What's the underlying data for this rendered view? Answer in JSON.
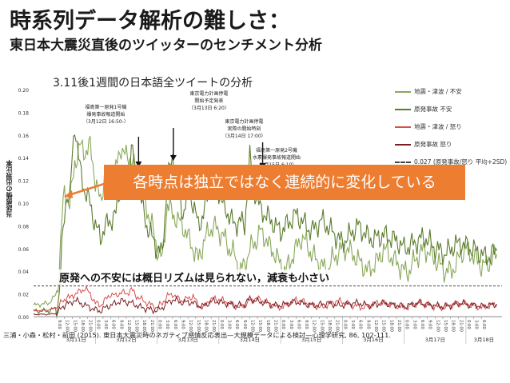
{
  "slide": {
    "title": "時系列データ解析の難しさ：",
    "subtitle": "東日本大震災直後のツイッターのセンチメント分析"
  },
  "callout": "各時点は独立ではなく連続的に変化している",
  "note": "原発への不安には概日リズムは見られない，減衰も小さい",
  "citation": "三浦・小森・松村・前田 (2015). 東日本大震災時のネガティブ感情反応表出—大規模データによる検討—心理学研究, 86, 102-111.",
  "annotations": [
    {
      "lines": [
        "福島第一原発1号機",
        "爆発事故報道開始",
        "（3月12日 16:50-）"
      ]
    },
    {
      "lines": [
        "東京電力計画停電",
        "開始予定発表",
        "（3月13日 6:20）"
      ]
    },
    {
      "lines": [
        "東京電力計画停電",
        "実際の開始時刻",
        "（3月14日 17:00）"
      ]
    },
    {
      "lines": [
        "福島第一原発2号機",
        "水素爆発事故報道開始",
        "（3月15日 6:10）"
      ]
    }
  ],
  "colors": {
    "quake_anxiety": "#8aa85a",
    "nuclear_anxiety": "#5b7c2c",
    "quake_anger": "#d6504f",
    "nuclear_anger": "#7a1f23",
    "callout": "#ed7d31",
    "threshold": "#444444"
  },
  "chart_data": {
    "type": "line",
    "title": "3.11後1週間の日本語全ツイートの分析",
    "ylabel": "当該感情の出現比率",
    "ylim": [
      0,
      0.2
    ],
    "yticks": [
      "0.00",
      "0.02",
      "0.04",
      "0.06",
      "0.08",
      "0.10",
      "0.12",
      "0.14",
      "0.16",
      "0.18",
      "0.20"
    ],
    "days": [
      "3月11日",
      "3月12日",
      "3月13日",
      "3月14日",
      "3月15日",
      "3月16日",
      "3月17日",
      "3月18日"
    ],
    "hour_ticks": [
      [
        "9:00",
        "12:00",
        "15:00",
        "18:00",
        "21:00"
      ],
      [
        "0:00",
        "3:00",
        "6:00",
        "9:00",
        "12:00",
        "15:00",
        "18:00",
        "21:00"
      ],
      [
        "0:00",
        "3:00",
        "6:00",
        "9:00",
        "12:00",
        "15:00",
        "18:00",
        "21:00"
      ],
      [
        "0:00",
        "3:00",
        "6:00",
        "9:00",
        "12:00",
        "15:00",
        "18:00",
        "21:00"
      ],
      [
        "0:00",
        "3:00",
        "6:00",
        "9:00",
        "12:00",
        "15:00",
        "18:00",
        "21:00"
      ],
      [
        "0:00",
        "3:00",
        "6:00",
        "9:00",
        "12:00",
        "15:00",
        "18:00",
        "21:00"
      ],
      [
        "0:00",
        "3:00",
        "6:00",
        "9:00",
        "12:00",
        "15:00",
        "18:00",
        "21:00"
      ],
      [
        "0:00",
        "3:00",
        "6:00"
      ]
    ],
    "x_unit": "hours since 3月11日 0:00",
    "x": [
      0,
      6,
      9,
      10,
      11,
      12,
      13,
      14,
      15,
      16,
      18,
      20,
      22,
      24,
      26,
      28,
      30,
      32,
      34,
      36,
      38,
      40,
      42,
      44,
      46,
      48,
      50,
      52,
      54,
      56,
      58,
      60,
      62,
      64,
      66,
      68,
      70,
      72,
      74,
      76,
      78,
      80,
      82,
      84,
      86,
      88,
      90,
      92,
      94,
      96,
      98,
      100,
      102,
      104,
      106,
      108,
      110,
      112,
      114,
      116,
      118,
      120,
      122,
      124,
      126,
      128,
      130,
      132,
      134,
      136,
      138,
      140,
      142,
      144,
      146,
      148,
      150,
      152,
      154,
      156,
      158,
      160,
      162,
      164,
      166,
      168,
      170,
      172,
      174,
      176,
      178,
      180
    ],
    "series": [
      {
        "name": "地震・津波 / 不安",
        "color_key": "quake_anxiety",
        "values": [
          0.01,
          0.012,
          0.02,
          0.045,
          0.085,
          0.11,
          0.105,
          0.1,
          0.115,
          0.135,
          0.15,
          0.145,
          0.15,
          0.12,
          0.1,
          0.13,
          0.115,
          0.13,
          0.15,
          0.14,
          0.14,
          0.125,
          0.115,
          0.095,
          0.08,
          0.06,
          0.05,
          0.1,
          0.09,
          0.085,
          0.08,
          0.07,
          0.06,
          0.05,
          0.065,
          0.075,
          0.08,
          0.075,
          0.07,
          0.06,
          0.055,
          0.04,
          0.045,
          0.06,
          0.065,
          0.075,
          0.07,
          0.06,
          0.055,
          0.045,
          0.04,
          0.05,
          0.06,
          0.07,
          0.065,
          0.055,
          0.05,
          0.045,
          0.04,
          0.05,
          0.055,
          0.06,
          0.06,
          0.055,
          0.05,
          0.045,
          0.04,
          0.045,
          0.05,
          0.06,
          0.055,
          0.05,
          0.045,
          0.04,
          0.04,
          0.05,
          0.055,
          0.06,
          0.055,
          0.05,
          0.045,
          0.04,
          0.04,
          0.045,
          0.055,
          0.06,
          0.055,
          0.05,
          0.045,
          0.045,
          0.05,
          0.055
        ]
      },
      {
        "name": "原発事故 不安",
        "color_key": "nuclear_anxiety",
        "values": [
          0.005,
          0.005,
          0.008,
          0.02,
          0.06,
          0.09,
          0.11,
          0.1,
          0.14,
          0.17,
          0.13,
          0.11,
          0.1,
          0.08,
          0.07,
          0.08,
          0.085,
          0.09,
          0.12,
          0.115,
          0.15,
          0.12,
          0.1,
          0.08,
          0.07,
          0.06,
          0.055,
          0.12,
          0.14,
          0.12,
          0.09,
          0.11,
          0.1,
          0.08,
          0.09,
          0.11,
          0.125,
          0.11,
          0.095,
          0.09,
          0.08,
          0.085,
          0.08,
          0.14,
          0.11,
          0.095,
          0.09,
          0.085,
          0.08,
          0.075,
          0.08,
          0.085,
          0.09,
          0.085,
          0.08,
          0.075,
          0.08,
          0.085,
          0.08,
          0.075,
          0.07,
          0.065,
          0.07,
          0.075,
          0.08,
          0.075,
          0.07,
          0.068,
          0.07,
          0.072,
          0.07,
          0.068,
          0.065,
          0.06,
          0.062,
          0.065,
          0.068,
          0.07,
          0.065,
          0.06,
          0.058,
          0.055,
          0.06,
          0.063,
          0.065,
          0.062,
          0.06,
          0.058,
          0.055,
          0.052,
          0.055,
          0.058
        ]
      },
      {
        "name": "地震・津波 / 怒り",
        "color_key": "quake_anger",
        "values": [
          0.005,
          0.006,
          0.008,
          0.01,
          0.013,
          0.015,
          0.018,
          0.016,
          0.018,
          0.02,
          0.022,
          0.025,
          0.02,
          0.012,
          0.01,
          0.015,
          0.02,
          0.018,
          0.022,
          0.02,
          0.024,
          0.018,
          0.015,
          0.012,
          0.01,
          0.008,
          0.012,
          0.018,
          0.02,
          0.016,
          0.014,
          0.016,
          0.018,
          0.01,
          0.008,
          0.014,
          0.016,
          0.015,
          0.014,
          0.012,
          0.01,
          0.008,
          0.01,
          0.014,
          0.016,
          0.015,
          0.013,
          0.011,
          0.009,
          0.008,
          0.01,
          0.013,
          0.015,
          0.014,
          0.012,
          0.01,
          0.009,
          0.008,
          0.01,
          0.012,
          0.014,
          0.013,
          0.011,
          0.01,
          0.009,
          0.008,
          0.009,
          0.011,
          0.013,
          0.012,
          0.011,
          0.01,
          0.009,
          0.008,
          0.009,
          0.011,
          0.012,
          0.011,
          0.01,
          0.009,
          0.008,
          0.008,
          0.01,
          0.011,
          0.012,
          0.011,
          0.01,
          0.009,
          0.008,
          0.009,
          0.01,
          0.011
        ]
      },
      {
        "name": "原発事故 怒り",
        "color_key": "nuclear_anger",
        "values": [
          0.002,
          0.002,
          0.003,
          0.005,
          0.008,
          0.01,
          0.012,
          0.011,
          0.013,
          0.015,
          0.012,
          0.01,
          0.008,
          0.006,
          0.005,
          0.008,
          0.01,
          0.012,
          0.014,
          0.013,
          0.012,
          0.01,
          0.008,
          0.007,
          0.006,
          0.005,
          0.008,
          0.012,
          0.015,
          0.014,
          0.012,
          0.013,
          0.012,
          0.01,
          0.009,
          0.012,
          0.014,
          0.013,
          0.012,
          0.011,
          0.01,
          0.01,
          0.011,
          0.016,
          0.014,
          0.013,
          0.012,
          0.011,
          0.01,
          0.01,
          0.011,
          0.012,
          0.013,
          0.012,
          0.011,
          0.01,
          0.01,
          0.011,
          0.012,
          0.011,
          0.01,
          0.01,
          0.011,
          0.012,
          0.012,
          0.011,
          0.01,
          0.01,
          0.011,
          0.012,
          0.011,
          0.01,
          0.01,
          0.009,
          0.01,
          0.011,
          0.012,
          0.011,
          0.01,
          0.01,
          0.009,
          0.009,
          0.01,
          0.011,
          0.012,
          0.011,
          0.01,
          0.01,
          0.009,
          0.01,
          0.01,
          0.011
        ]
      }
    ],
    "threshold": {
      "name": "0.027 (原発事故/怒り 平均+2SD)",
      "value": 0.027
    },
    "events": [
      {
        "x": 40.8,
        "label_index": 0
      },
      {
        "x": 54.3,
        "label_index": 1
      },
      {
        "x": 89.0,
        "label_index": 2
      },
      {
        "x": 102.2,
        "label_index": 3
      }
    ],
    "legend_position": "right",
    "grid": false
  }
}
